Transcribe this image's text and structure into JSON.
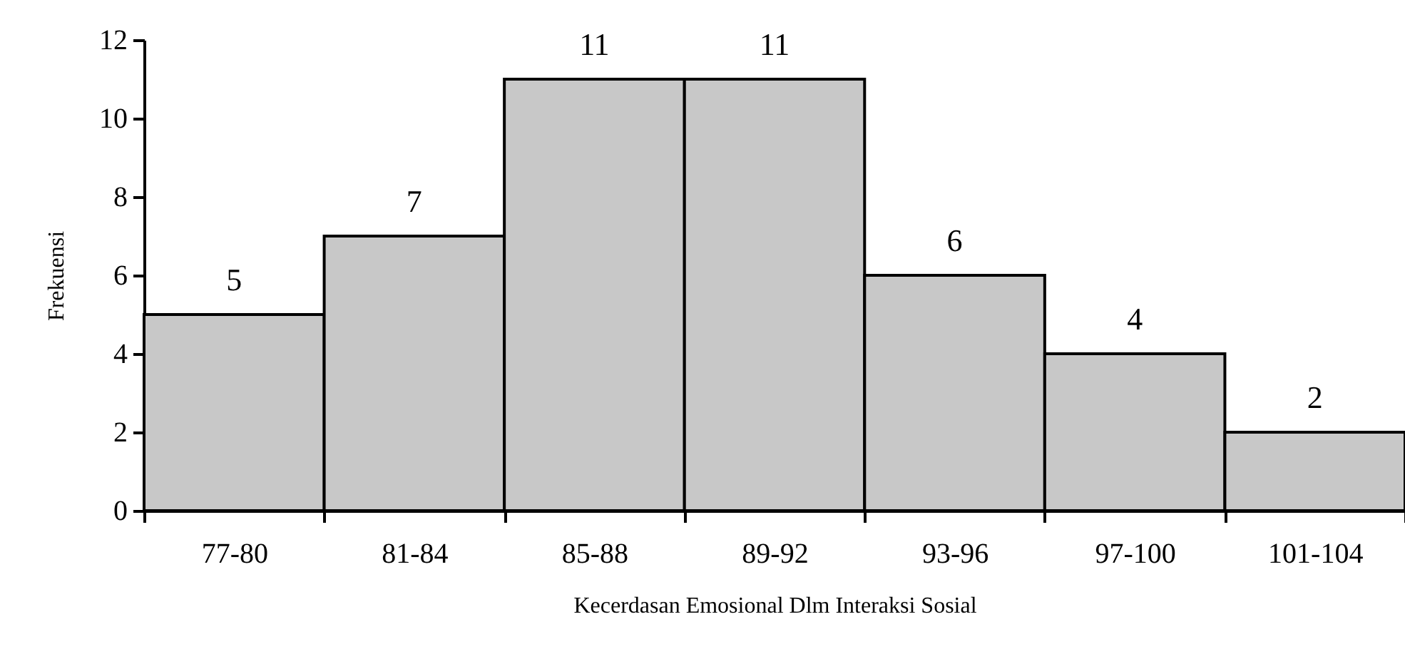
{
  "chart_data": {
    "type": "bar",
    "xlabel": "Kecerdasan Emosional Dlm Interaksi Sosial",
    "ylabel": "Frekuensi",
    "categories": [
      "77-80",
      "81-84",
      "85-88",
      "89-92",
      "93-96",
      "97-100",
      "101-104"
    ],
    "values": [
      5,
      7,
      11,
      11,
      6,
      4,
      2
    ],
    "color": "#c8c8c8",
    "ylim": [
      0,
      12
    ],
    "yticks": [
      0,
      2,
      4,
      6,
      8,
      10,
      12
    ],
    "grid": false,
    "data_labels": true
  }
}
